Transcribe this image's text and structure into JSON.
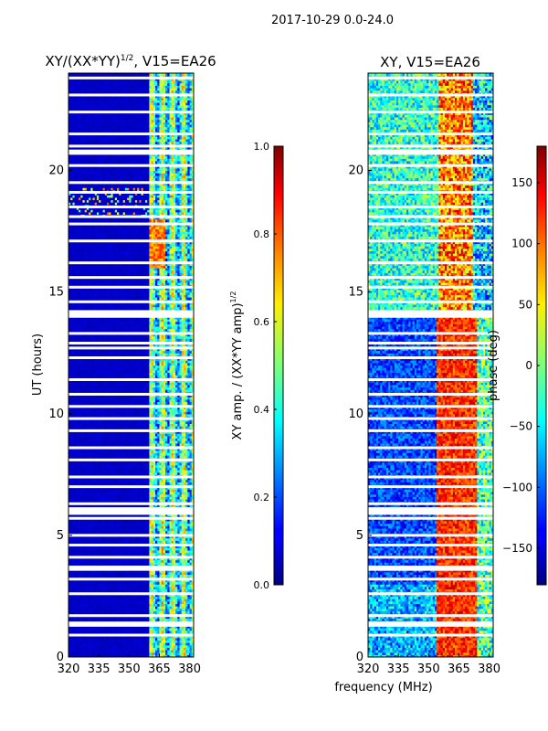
{
  "suptitle": "2017-10-29 0.0-24.0",
  "chart_data": [
    {
      "type": "heatmap",
      "title": "XY/(XX*YY)",
      "title_exponent": "1/2",
      "title_suffix": ", V15=EA26",
      "xlabel": "",
      "ylabel": "UT (hours)",
      "xlim": [
        320,
        382
      ],
      "ylim": [
        0,
        24
      ],
      "x_ticks": [
        {
          "v": 320,
          "label": "320"
        },
        {
          "v": 335,
          "label": "335"
        },
        {
          "v": 350,
          "label": "350"
        },
        {
          "v": 365,
          "label": "365"
        },
        {
          "v": 380,
          "label": "380"
        }
      ],
      "y_ticks": [
        {
          "v": 0,
          "label": "0"
        },
        {
          "v": 5,
          "label": "5"
        },
        {
          "v": 10,
          "label": "10"
        },
        {
          "v": 15,
          "label": "15"
        },
        {
          "v": 20,
          "label": "20"
        }
      ],
      "colormap": "jet",
      "value_range": [
        0.0,
        1.0
      ],
      "description": "Background ~0.05 below 361 MHz; bright vertical bands 361-382 MHz with values 0.3-0.9; flagged rows shown white"
    },
    {
      "type": "colorbar",
      "label": "XY amp. / (XX*YY amp)",
      "label_exponent": "1/2",
      "range": [
        0.0,
        1.0
      ],
      "ticks": [
        {
          "v": 0.0,
          "label": "0.0"
        },
        {
          "v": 0.2,
          "label": "0.2"
        },
        {
          "v": 0.4,
          "label": "0.4"
        },
        {
          "v": 0.6,
          "label": "0.6"
        },
        {
          "v": 0.8,
          "label": "0.8"
        },
        {
          "v": 1.0,
          "label": "1.0"
        }
      ]
    },
    {
      "type": "heatmap",
      "title": "XY, V15=EA26",
      "xlabel": "frequency (MHz)",
      "ylabel": "",
      "xlim": [
        320,
        382
      ],
      "ylim": [
        0,
        24
      ],
      "x_ticks": [
        {
          "v": 320,
          "label": "320"
        },
        {
          "v": 335,
          "label": "335"
        },
        {
          "v": 350,
          "label": "350"
        },
        {
          "v": 365,
          "label": "365"
        },
        {
          "v": 380,
          "label": "380"
        }
      ],
      "y_ticks": [
        {
          "v": 0,
          "label": "0"
        },
        {
          "v": 5,
          "label": "5"
        },
        {
          "v": 10,
          "label": "10"
        },
        {
          "v": 15,
          "label": "15"
        },
        {
          "v": 20,
          "label": "20"
        }
      ],
      "colormap": "jet",
      "value_range": [
        -180,
        180
      ],
      "description": "Phase in degrees; mostly negative (blue) below 355 MHz during 3-14 h, positive (red) 355-375 MHz; noisy cyan/green at 14-24 h; flagged rows white"
    },
    {
      "type": "colorbar",
      "label": "phase (deg)",
      "range": [
        -180,
        180
      ],
      "ticks": [
        {
          "v": -150,
          "label": "−150"
        },
        {
          "v": -100,
          "label": "−100"
        },
        {
          "v": -50,
          "label": "−50"
        },
        {
          "v": 0,
          "label": "0"
        },
        {
          "v": 50,
          "label": "50"
        },
        {
          "v": 100,
          "label": "100"
        },
        {
          "v": 150,
          "label": "150"
        }
      ]
    }
  ],
  "flagged_hours": [
    0.9,
    1.3,
    1.4,
    1.7,
    2.6,
    3.2,
    3.6,
    3.7,
    4.1,
    4.6,
    5.0,
    5.7,
    5.9,
    6.0,
    6.1,
    6.3,
    7.0,
    7.4,
    8.1,
    8.6,
    9.3,
    9.8,
    10.3,
    10.8,
    11.4,
    12.3,
    12.7,
    12.9,
    13.3,
    14.0,
    14.1,
    14.2,
    14.6,
    15.2,
    15.6,
    16.2,
    17.1,
    17.8,
    18.1,
    18.5,
    19.1,
    19.5,
    20.2,
    20.7,
    20.8,
    21.0,
    21.5,
    22.4,
    23.1,
    23.8
  ]
}
